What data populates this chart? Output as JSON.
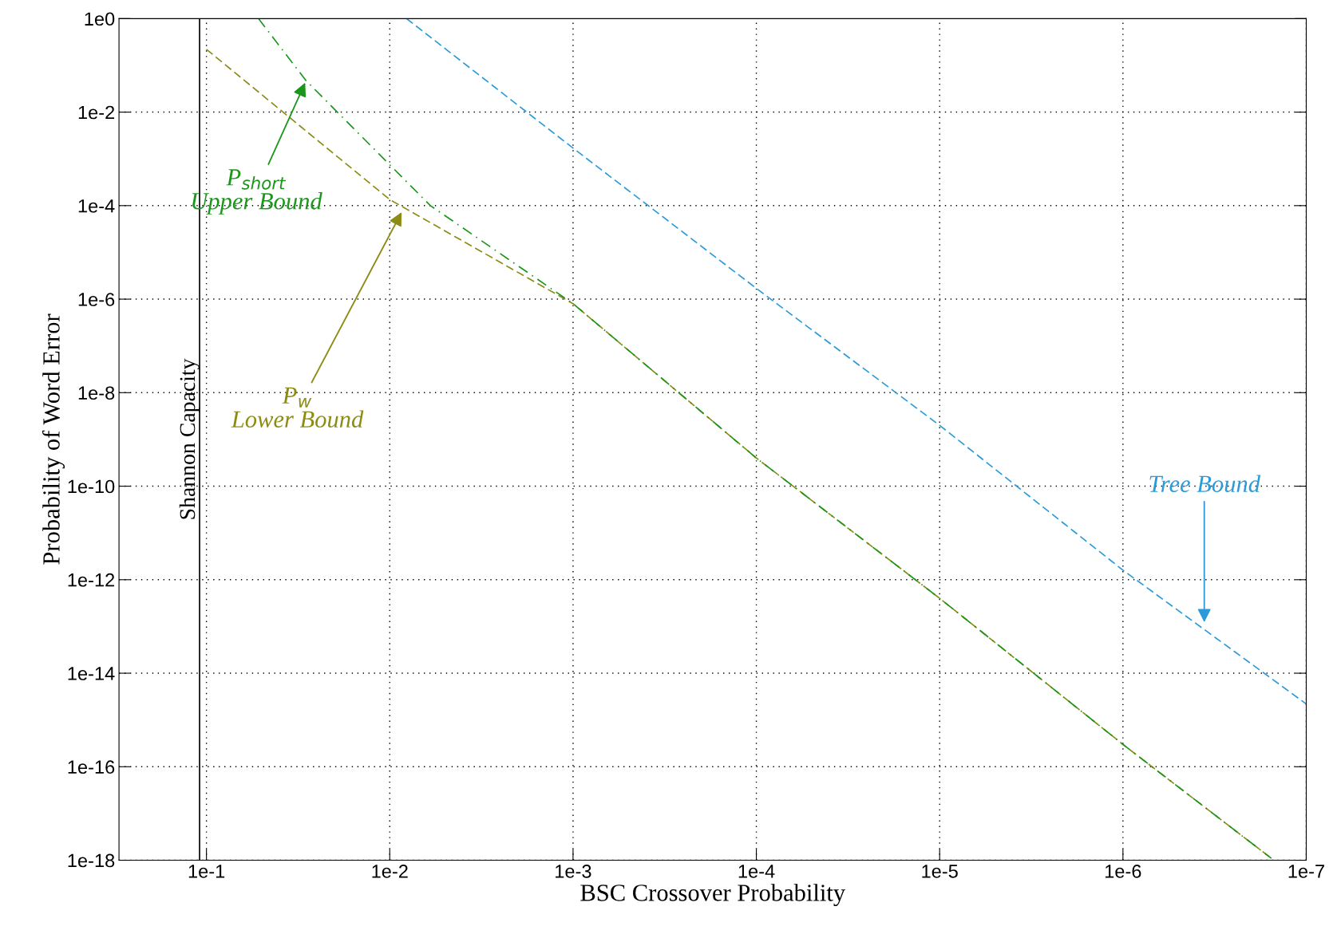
{
  "chart_data": {
    "type": "line",
    "xlabel": "BSC Crossover Probability",
    "ylabel": "Probability of Word Error",
    "log": "xy",
    "grid": true,
    "legend": false,
    "xlim": [
      0.3,
      1e-07
    ],
    "ylim": [
      1e-18,
      1
    ],
    "xticks": [
      {
        "value": 0.1,
        "label": "1e-1"
      },
      {
        "value": 0.01,
        "label": "1e-2"
      },
      {
        "value": 0.001,
        "label": "1e-3"
      },
      {
        "value": 0.0001,
        "label": "1e-4"
      },
      {
        "value": 1e-05,
        "label": "1e-5"
      },
      {
        "value": 1e-06,
        "label": "1e-6"
      },
      {
        "value": 1e-07,
        "label": "1e-7"
      }
    ],
    "yticks": [
      {
        "value": 1,
        "label": "1e0"
      },
      {
        "value": 0.01,
        "label": "1e-2"
      },
      {
        "value": 0.0001,
        "label": "1e-4"
      },
      {
        "value": 1e-06,
        "label": "1e-6"
      },
      {
        "value": 1e-08,
        "label": "1e-8"
      },
      {
        "value": 1e-10,
        "label": "1e-10"
      },
      {
        "value": 1e-12,
        "label": "1e-12"
      },
      {
        "value": 1e-14,
        "label": "1e-14"
      },
      {
        "value": 1e-16,
        "label": "1e-16"
      },
      {
        "value": 1e-18,
        "label": "1e-18"
      }
    ],
    "series": [
      {
        "color": "#8c8c14",
        "line_style": "dashed",
        "x": [
          0.1,
          0.01,
          0.001,
          0.0001,
          1e-05,
          1e-06,
          1.55e-07
        ],
        "values": [
          0.22,
          0.000135,
          8e-07,
          4e-10,
          4e-13,
          3e-16,
          1.1e-18
        ]
      },
      {
        "color": "#1a961a",
        "line_style": "dashdot",
        "x": [
          0.052,
          0.0286,
          0.006,
          0.001,
          0.0001,
          1e-05,
          1e-06,
          1.55e-07
        ],
        "values": [
          1,
          0.047,
          0.0001,
          8e-07,
          4e-10,
          4e-13,
          3e-16,
          1.1e-18
        ]
      },
      {
        "color": "#2b9ad8",
        "line_style": "dashed",
        "x": [
          0.0081,
          0.001,
          0.0001,
          1e-05,
          1e-06,
          1e-07
        ],
        "values": [
          1,
          0.0017,
          1.7e-06,
          2e-09,
          1.6e-12,
          2.2e-15
        ]
      }
    ],
    "ref_lines": [
      {
        "axis": "x",
        "value": 0.109,
        "label": "Shannon Capacity",
        "color": "#000000",
        "line_style": "solid"
      }
    ],
    "annotations": [
      {
        "text": "P$_{short}$\nUpper Bound",
        "x": 0.0286,
        "y": 0.047
      },
      {
        "text": "P$_{w}$\nLower Bound",
        "x": 0.0085,
        "y": 8e-05
      },
      {
        "text": "Tree Bound",
        "x": 3.6e-07,
        "y": 1.1e-13
      }
    ]
  }
}
